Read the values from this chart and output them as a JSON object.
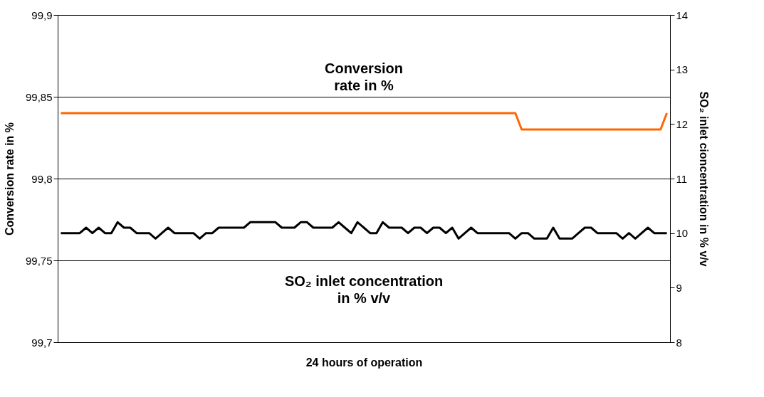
{
  "chart_data": {
    "type": "line",
    "xlabel": "24 hours of operation",
    "ylabel": "Conversion rate in %",
    "y2label": "SO₂ inlet cioncentration in % v/v",
    "categories": [
      null,
      null,
      null,
      null,
      null,
      null,
      null,
      null,
      null,
      null,
      null,
      null,
      null,
      null,
      null,
      null,
      null,
      null,
      null,
      null,
      null,
      null,
      null,
      null,
      null,
      null,
      null,
      null,
      null,
      null,
      null,
      null,
      null,
      null,
      null,
      null,
      null,
      null,
      null,
      null,
      null,
      null,
      null,
      null,
      null,
      null,
      null,
      null,
      null,
      null,
      null,
      null,
      null,
      null,
      null,
      null,
      null,
      null,
      null,
      null,
      null,
      null,
      null,
      null,
      null,
      null,
      null,
      null,
      null,
      null,
      null,
      null,
      null,
      null,
      null,
      null,
      null,
      null,
      null,
      null,
      null,
      null,
      null,
      null,
      null,
      null,
      null,
      null,
      null,
      null,
      null,
      null,
      null,
      null,
      null,
      null,
      null
    ],
    "series": [
      {
        "color": "#ff6600",
        "values": [
          99.84,
          99.84,
          99.84,
          99.84,
          99.84,
          99.84,
          99.84,
          99.84,
          99.84,
          99.84,
          99.84,
          99.84,
          99.84,
          99.84,
          99.84,
          99.84,
          99.84,
          99.84,
          99.84,
          99.84,
          99.84,
          99.84,
          99.84,
          99.84,
          99.84,
          99.84,
          99.84,
          99.84,
          99.84,
          99.84,
          99.84,
          99.84,
          99.84,
          99.84,
          99.84,
          99.84,
          99.84,
          99.84,
          99.84,
          99.84,
          99.84,
          99.84,
          99.84,
          99.84,
          99.84,
          99.84,
          99.84,
          99.84,
          99.84,
          99.84,
          99.84,
          99.84,
          99.84,
          99.84,
          99.84,
          99.84,
          99.84,
          99.84,
          99.84,
          99.84,
          99.84,
          99.84,
          99.84,
          99.84,
          99.84,
          99.84,
          99.84,
          99.84,
          99.84,
          99.84,
          99.84,
          99.84,
          99.84,
          99.83,
          99.83,
          99.83,
          99.83,
          99.83,
          99.83,
          99.83,
          99.83,
          99.83,
          99.83,
          99.83,
          99.83,
          99.83,
          99.83,
          99.83,
          99.83,
          99.83,
          99.83,
          99.83,
          99.83,
          99.83,
          99.83,
          99.83,
          99.84
        ]
      },
      {
        "color": "#000000",
        "axis": "y2",
        "values": [
          10,
          10,
          10,
          10,
          10.1,
          10,
          10.1,
          10,
          10,
          10.2,
          10.1,
          10.1,
          10,
          10,
          10,
          9.9,
          10,
          10.1,
          10,
          10,
          10,
          10,
          9.9,
          10,
          10,
          10.1,
          10.1,
          10.1,
          10.1,
          10.1,
          10.2,
          10.2,
          10.2,
          10.2,
          10.2,
          10.1,
          10.1,
          10.1,
          10.2,
          10.2,
          10.1,
          10.1,
          10.1,
          10.1,
          10.2,
          10.1,
          10,
          10.2,
          10.1,
          10,
          10,
          10.2,
          10.1,
          10.1,
          10.1,
          10,
          10.1,
          10.1,
          10,
          10.1,
          10.1,
          10,
          10.1,
          9.9,
          10,
          10.1,
          10,
          10,
          10,
          10,
          10,
          10,
          9.9,
          10,
          10,
          9.9,
          9.9,
          9.9,
          10.1,
          9.9,
          9.9,
          9.9,
          10,
          10.1,
          10.1,
          10,
          10,
          10,
          10,
          9.9,
          10,
          9.9,
          10,
          10.1,
          10,
          10,
          10
        ]
      }
    ],
    "ylim": [
      99.7,
      99.9
    ],
    "yticks": [
      {
        "value": 99.7,
        "label": "99,7"
      },
      {
        "value": 99.75,
        "label": "99,75"
      },
      {
        "value": 99.8,
        "label": "99,8"
      },
      {
        "value": 99.85,
        "label": "99,85"
      },
      {
        "value": 99.9,
        "label": "99,9"
      }
    ],
    "y2lim": [
      8,
      14
    ],
    "y2ticks": [
      8,
      9,
      10,
      11,
      12,
      13,
      14
    ],
    "grid": "y",
    "tick_labels": "y",
    "annotations": [
      "Conversion\nrate in %",
      "SO₂ inlet concentration\nin % v/v"
    ]
  }
}
